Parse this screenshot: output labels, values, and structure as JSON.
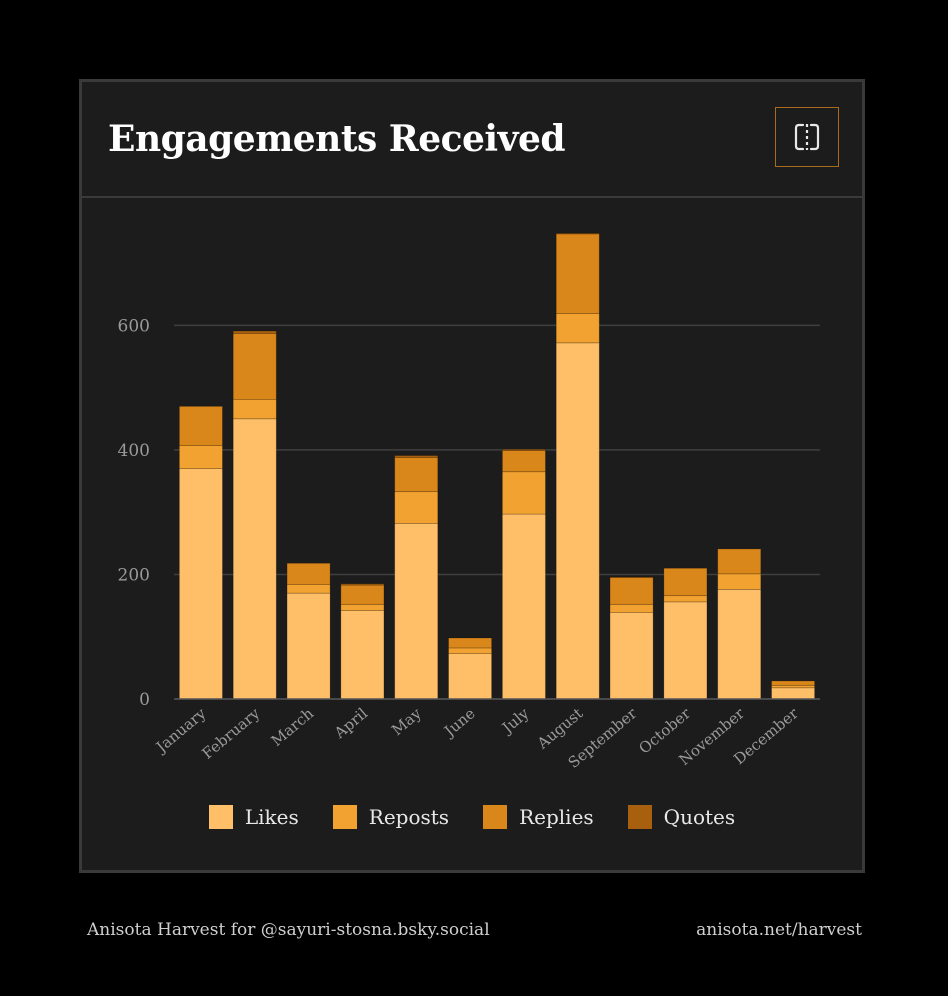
{
  "card": {
    "title": "Engagements Received",
    "toggle_icon": "split-view-icon"
  },
  "colors": {
    "likes": "#ffbf69",
    "reposts": "#f2a230",
    "replies": "#d9861a",
    "quotes": "#a8600f",
    "grid": "#3f3f3f",
    "tick_text": "#9a9a9a"
  },
  "chart_data": {
    "type": "bar",
    "stacked": true,
    "title": "Engagements Received",
    "xlabel": "",
    "ylabel": "",
    "ylim": [
      0,
      750
    ],
    "yticks": [
      0,
      200,
      400,
      600
    ],
    "grid": true,
    "legend": "bottom",
    "categories": [
      "January",
      "February",
      "March",
      "April",
      "May",
      "June",
      "July",
      "August",
      "September",
      "October",
      "November",
      "December"
    ],
    "series": [
      {
        "name": "Likes",
        "values": [
          370,
          450,
          170,
          142,
          282,
          73,
          297,
          572,
          139,
          156,
          176,
          18
        ]
      },
      {
        "name": "Reposts",
        "values": [
          37,
          31,
          14,
          10,
          51,
          9,
          68,
          47,
          13,
          10,
          25,
          4
        ]
      },
      {
        "name": "Replies",
        "values": [
          63,
          106,
          34,
          31,
          55,
          16,
          34,
          128,
          43,
          44,
          40,
          7
        ]
      },
      {
        "name": "Quotes",
        "values": [
          0,
          4,
          0,
          2,
          3,
          0,
          2,
          1,
          1,
          0,
          0,
          0
        ]
      }
    ]
  },
  "footer": {
    "left": "Anisota Harvest for @sayuri-stosna.bsky.social",
    "right": "anisota.net/harvest"
  }
}
